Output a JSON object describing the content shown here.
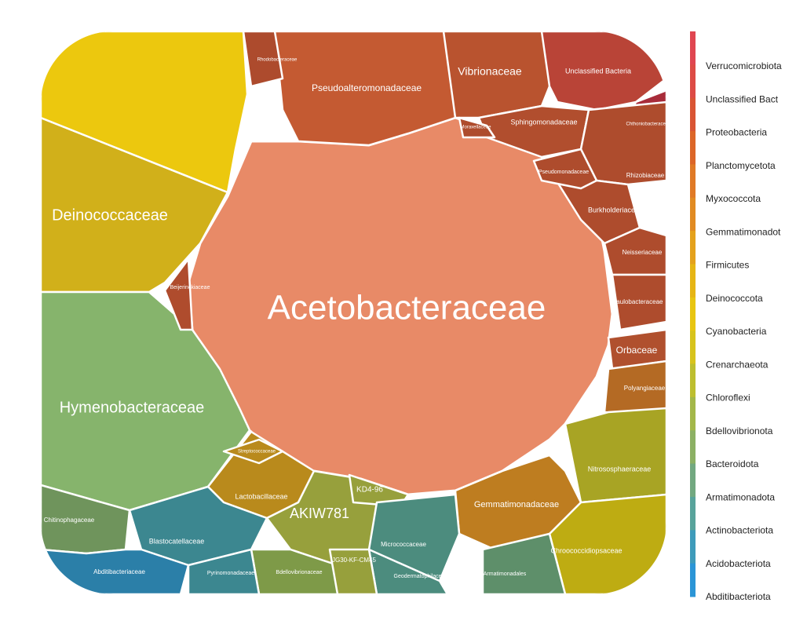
{
  "chart_data": {
    "type": "voronoi-treemap",
    "legend_position": "right",
    "legend": [
      {
        "name": "Verrucomicrobiota",
        "color": "#E04651"
      },
      {
        "name": "Unclassified Bact",
        "color": "#DD4B45"
      },
      {
        "name": "Proteobacteria",
        "color": "#D95534"
      },
      {
        "name": "Planctomycetota",
        "color": "#DC6628"
      },
      {
        "name": "Myxococcota",
        "color": "#E07A26"
      },
      {
        "name": "Gemmatimonadot",
        "color": "#E18B22"
      },
      {
        "name": "Firmicutes",
        "color": "#E4A11C"
      },
      {
        "name": "Deinococcota",
        "color": "#E6B514"
      },
      {
        "name": "Cyanobacteria",
        "color": "#E8C511"
      },
      {
        "name": "Crenarchaeota",
        "color": "#D7C31C"
      },
      {
        "name": "Chloroflexi",
        "color": "#BDBE2F"
      },
      {
        "name": "Bdellovibrionota",
        "color": "#A3B749"
      },
      {
        "name": "Bacteroidota",
        "color": "#8CB064"
      },
      {
        "name": "Armatimonadota",
        "color": "#72A880"
      },
      {
        "name": "Actinobacteriota",
        "color": "#58A39B"
      },
      {
        "name": "Acidobacteriota",
        "color": "#3E9BBA"
      },
      {
        "name": "Abditibacteriota",
        "color": "#2B95D6"
      }
    ],
    "cells": [
      {
        "label": "Acetobacteraceae",
        "phylum": "Proteobacteria",
        "color": "#E88A67"
      },
      {
        "label": "Deinococcaceae",
        "phylum": "Deinococcota",
        "color": "#D1B01A"
      },
      {
        "label": "Hymenobacteraceae",
        "phylum": "Bacteroidota",
        "color": "#86B46C"
      },
      {
        "label": "",
        "phylum": "Cyanobacteria",
        "color": "#ECC80E"
      },
      {
        "label": "Pseudoalteromonadaceae",
        "phylum": "Proteobacteria",
        "color": "#C45A32"
      },
      {
        "label": "Vibrionaceae",
        "phylum": "Proteobacteria",
        "color": "#B9532F"
      },
      {
        "label": "Unclassified Bacteria",
        "phylum": "Unclassified Bacteria",
        "color": "#B94437"
      },
      {
        "label": "Chthoniobacteraceae",
        "phylum": "Verrucomicrobiota",
        "color": "#A82C3A"
      },
      {
        "label": "Sphingomonadaceae",
        "phylum": "Proteobacteria",
        "color": "#B14E2E"
      },
      {
        "label": "Rhizobiaceae",
        "phylum": "Proteobacteria",
        "color": "#AE4C2D"
      },
      {
        "label": "Burkholderiaceae",
        "phylum": "Proteobacteria",
        "color": "#AE4C2D"
      },
      {
        "label": "Neisseriaceae",
        "phylum": "Proteobacteria",
        "color": "#AE4C2D"
      },
      {
        "label": "Caulobacteraceae",
        "phylum": "Proteobacteria",
        "color": "#AE4C2D"
      },
      {
        "label": "Orbaceae",
        "phylum": "Proteobacteria",
        "color": "#B0502E"
      },
      {
        "label": "Polyangiaceae",
        "phylum": "Myxococcota",
        "color": "#B46A24"
      },
      {
        "label": "Nitrososphaeraceae",
        "phylum": "Crenarchaeota",
        "color": "#A8A424"
      },
      {
        "label": "Chroococcidiopsaceae",
        "phylum": "Cyanobacteria",
        "color": "#BEAC12"
      },
      {
        "label": "Gemmatimonadaceae",
        "phylum": "Gemmatimonadota",
        "color": "#BE7D20"
      },
      {
        "label": "Lactobacillaceae",
        "phylum": "Firmicutes",
        "color": "#B98A1C"
      },
      {
        "label": "AKIW781",
        "phylum": "Chloroflexi",
        "color": "#97A03C"
      },
      {
        "label": "KD4-96",
        "phylum": "Chloroflexi",
        "color": "#97A03C"
      },
      {
        "label": "Micrococcaceae",
        "phylum": "Actinobacteriota",
        "color": "#4C8C7E"
      },
      {
        "label": "Blastocatellaceae",
        "phylum": "Acidobacteriota",
        "color": "#3C8790"
      },
      {
        "label": "Chitinophagaceae",
        "phylum": "Bacteroidota",
        "color": "#6F945C"
      },
      {
        "label": "Abditibacteriaceae",
        "phylum": "Abditibacteriota",
        "color": "#2B7FA8"
      },
      {
        "label": "Bdellovibrionaceae",
        "phylum": "Bdellovibrionota",
        "color": "#7E9A48"
      },
      {
        "label": "Armatimonadales",
        "phylum": "Armatimonadota",
        "color": "#5E8F6A"
      },
      {
        "label": "Beijerinckiaceae",
        "phylum": "Proteobacteria",
        "color": "#AF4C2D"
      },
      {
        "label": "Pseudomonadaceae",
        "phylum": "Proteobacteria",
        "color": "#AE4C2D"
      },
      {
        "label": "Pyrinomonadaceae",
        "phylum": "Acidobacteriota",
        "color": "#3C8790"
      },
      {
        "label": "Geodermatophilaceae",
        "phylum": "Actinobacteriota",
        "color": "#4C8C7E"
      },
      {
        "label": "Rhodobacteraceae",
        "phylum": "Proteobacteria",
        "color": "#AD4B2D"
      },
      {
        "label": "Moraxellaceae",
        "phylum": "Proteobacteria",
        "color": "#AE4C2D"
      },
      {
        "label": "Streptococcaceae",
        "phylum": "Firmicutes",
        "color": "#B98A1C"
      },
      {
        "label": "JG30-KF-CM45",
        "phylum": "Chloroflexi",
        "color": "#97A03C"
      }
    ]
  }
}
